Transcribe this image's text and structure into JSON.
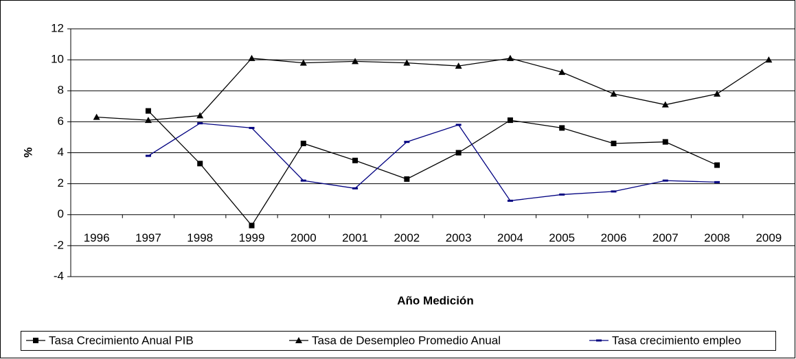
{
  "chart_data": {
    "type": "line",
    "y_label": "%",
    "x_label": "Año Medición",
    "categories": [
      "1996",
      "1997",
      "1998",
      "1999",
      "2000",
      "2001",
      "2002",
      "2003",
      "2004",
      "2005",
      "2006",
      "2007",
      "2008",
      "2009"
    ],
    "series": [
      {
        "name": "Tasa Crecimiento Anual PIB",
        "color": "#000000",
        "marker": "square",
        "values": [
          null,
          6.7,
          3.3,
          -0.7,
          4.6,
          3.5,
          2.3,
          4.0,
          6.1,
          5.6,
          4.6,
          4.7,
          3.2,
          null
        ]
      },
      {
        "name": "Tasa de Desempleo Promedio Anual",
        "color": "#000000",
        "marker": "triangle",
        "values": [
          6.3,
          6.1,
          6.4,
          10.1,
          9.8,
          9.9,
          9.8,
          9.6,
          10.1,
          9.2,
          7.8,
          7.1,
          7.8,
          10.0
        ]
      },
      {
        "name": "Tasa crecimiento empleo",
        "color": "#000080",
        "marker": "dash",
        "values": [
          null,
          3.8,
          5.9,
          5.6,
          2.2,
          1.7,
          4.7,
          5.8,
          0.9,
          1.3,
          1.5,
          2.2,
          2.1,
          null
        ]
      }
    ],
    "ylim": [
      -4,
      12
    ],
    "yticks": [
      -4,
      -2,
      0,
      2,
      4,
      6,
      8,
      10,
      12
    ],
    "grid": true,
    "legend": "bottom"
  }
}
